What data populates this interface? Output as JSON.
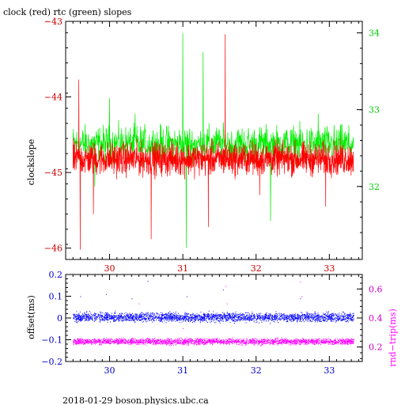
{
  "colors": {
    "clock": "#ff0000",
    "rtc": "#00ee00",
    "offset": "#0000ff",
    "rndtrip": "#ff00ff",
    "axis": "#000000"
  },
  "footer": {
    "text": "2018-01-29  boson.physics.ubc.ca"
  },
  "chart_data": [
    {
      "type": "line",
      "title": "clock (red) rtc (green) slopes",
      "xlabel": "",
      "ylabel": "clockslope",
      "y2label": "",
      "xlim": [
        29.4,
        33.45
      ],
      "ylim": [
        -46.15,
        -43.0
      ],
      "y2lim": [
        31.05,
        34.15
      ],
      "x_ticks": [
        30,
        31,
        32,
        33
      ],
      "y_ticks": [
        -46,
        -45,
        -44,
        -43
      ],
      "y2_ticks": [
        32,
        33,
        34
      ],
      "x_tick_labels": [
        "30",
        "31",
        "32",
        "33"
      ],
      "y_tick_labels": [
        "−46",
        "−45",
        "−44",
        "−43"
      ],
      "y2_tick_labels": [
        "32",
        "33",
        "34"
      ],
      "grid": false,
      "series": [
        {
          "axis": "left",
          "x_start": 29.5,
          "x_end": 33.33,
          "baseline": -44.82,
          "noise": 0.32,
          "spikes": [
            [
              29.58,
              -43.77
            ],
            [
              29.6,
              -46.02
            ],
            [
              29.78,
              -45.55
            ],
            [
              30.57,
              -45.88
            ],
            [
              31.35,
              -45.72
            ],
            [
              31.58,
              -43.17
            ],
            [
              32.05,
              -45.3
            ],
            [
              32.95,
              -45.45
            ]
          ]
        },
        {
          "axis": "right",
          "x_start": 29.5,
          "x_end": 33.33,
          "baseline": 32.55,
          "noise": 0.35,
          "spikes": [
            [
              29.8,
              32.0
            ],
            [
              30.0,
              33.15
            ],
            [
              30.35,
              32.95
            ],
            [
              31.0,
              34.0
            ],
            [
              31.05,
              31.2
            ],
            [
              31.28,
              33.75
            ],
            [
              32.2,
              31.55
            ],
            [
              32.85,
              32.95
            ]
          ]
        }
      ]
    },
    {
      "type": "scatter",
      "title": "",
      "xlabel": "",
      "ylabel": "offset(ms)",
      "y2label": "rnd−trip(ms)",
      "xlim": [
        29.4,
        33.45
      ],
      "ylim": [
        -0.2,
        0.2
      ],
      "y2lim": [
        0.1,
        0.7
      ],
      "x_ticks": [
        30,
        31,
        32,
        33
      ],
      "y_ticks": [
        -0.2,
        -0.1,
        0,
        0.1,
        0.2
      ],
      "y2_ticks": [
        0.2,
        0.4,
        0.6
      ],
      "x_tick_labels": [
        "30",
        "31",
        "32",
        "33"
      ],
      "y_tick_labels": [
        "−0.2",
        "−0.1",
        "0",
        "0.1",
        "0.2"
      ],
      "y2_tick_labels": [
        "0.2",
        "0.4",
        "0.6"
      ],
      "grid": false,
      "series": [
        {
          "axis": "left",
          "x_start": 29.5,
          "x_end": 33.33,
          "baseline": 0.005,
          "noise": 0.03,
          "outliers": [
            [
              29.6,
              0.1
            ],
            [
              29.95,
              0.11
            ],
            [
              30.3,
              0.09
            ],
            [
              30.52,
              0.17
            ],
            [
              31.05,
              0.1
            ],
            [
              31.55,
              0.13
            ],
            [
              32.6,
              0.09
            ]
          ]
        },
        {
          "axis": "right",
          "x_start": 29.5,
          "x_end": 33.33,
          "baseline": 0.24,
          "noise": 0.03,
          "outliers": [
            [
              30.4,
              0.5
            ],
            [
              30.55,
              0.4
            ],
            [
              31.58,
              0.62
            ],
            [
              31.6,
              0.5
            ],
            [
              32.6,
              0.65
            ],
            [
              32.62,
              0.55
            ],
            [
              31.0,
              0.33
            ]
          ]
        }
      ]
    }
  ]
}
